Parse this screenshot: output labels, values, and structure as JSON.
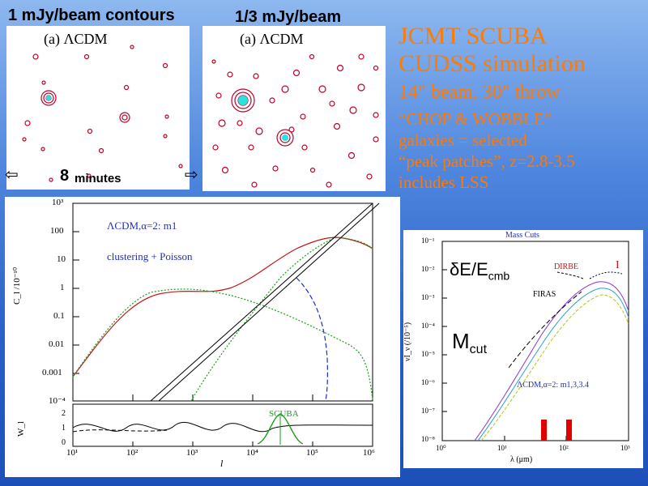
{
  "slide": {
    "title_line1": "JCMT SCUBA",
    "title_line2": "CUDSS simulation",
    "beam_text": "14\" beam, 30\" throw",
    "chop_text": "“CHOP & WOBBLE”",
    "galaxies_text": "galaxies = selected",
    "peak_text": "“peak patches”, z=2.8-3.5",
    "lss_text": "includes LSS"
  },
  "contour_left": {
    "heading": "1 mJy/beam contours",
    "model_label": "(a) ΛCDM",
    "minutes_number": "8",
    "minutes_label": "minutes"
  },
  "contour_right": {
    "heading": "1/3  mJy/beam",
    "model_label": "(a) ΛCDM"
  },
  "power_plot": {
    "legend1": "ΛCDM,α=2: m1",
    "legend2": "clustering + Poisson",
    "xlabel": "l",
    "ylabel_top": "C_l /10⁻¹⁰",
    "ylabel_bottom": "W_l",
    "band_label": "SCUBA",
    "y_ticks": [
      "10³",
      "100",
      "10",
      "1",
      "0.1",
      "0.01",
      "0.001",
      "10⁻⁴"
    ],
    "x_ticks": [
      "10¹",
      "10²",
      "10³",
      "10⁴",
      "10⁵",
      "10⁶"
    ],
    "w_ticks": [
      "2",
      "1",
      "0"
    ]
  },
  "sed_plot": {
    "title": "Mass Cuts",
    "delta_label": "δE/E",
    "delta_sub": "cmb",
    "mcut_label": "M",
    "mcut_sub": "cut",
    "dirbe_label": "DIRBE",
    "firas_label": "FIRAS",
    "legend": "ΛCDM,α=2: m1,3,3.4",
    "xlabel": "λ (μm)",
    "ylabel": "νI_ν (/10⁻⁵)",
    "y_ticks": [
      "10⁻¹",
      "10⁻²",
      "10⁻³",
      "10⁻⁴",
      "10⁻⁵",
      "10⁻⁶",
      "10⁻⁷",
      "10⁻⁸"
    ],
    "x_ticks": [
      "10⁰",
      "10¹",
      "10²",
      "10³"
    ]
  },
  "colors": {
    "title": "#ff7a00",
    "contour": "#c0002a",
    "cyan": "#29e3df",
    "highlight": "#e00000"
  }
}
